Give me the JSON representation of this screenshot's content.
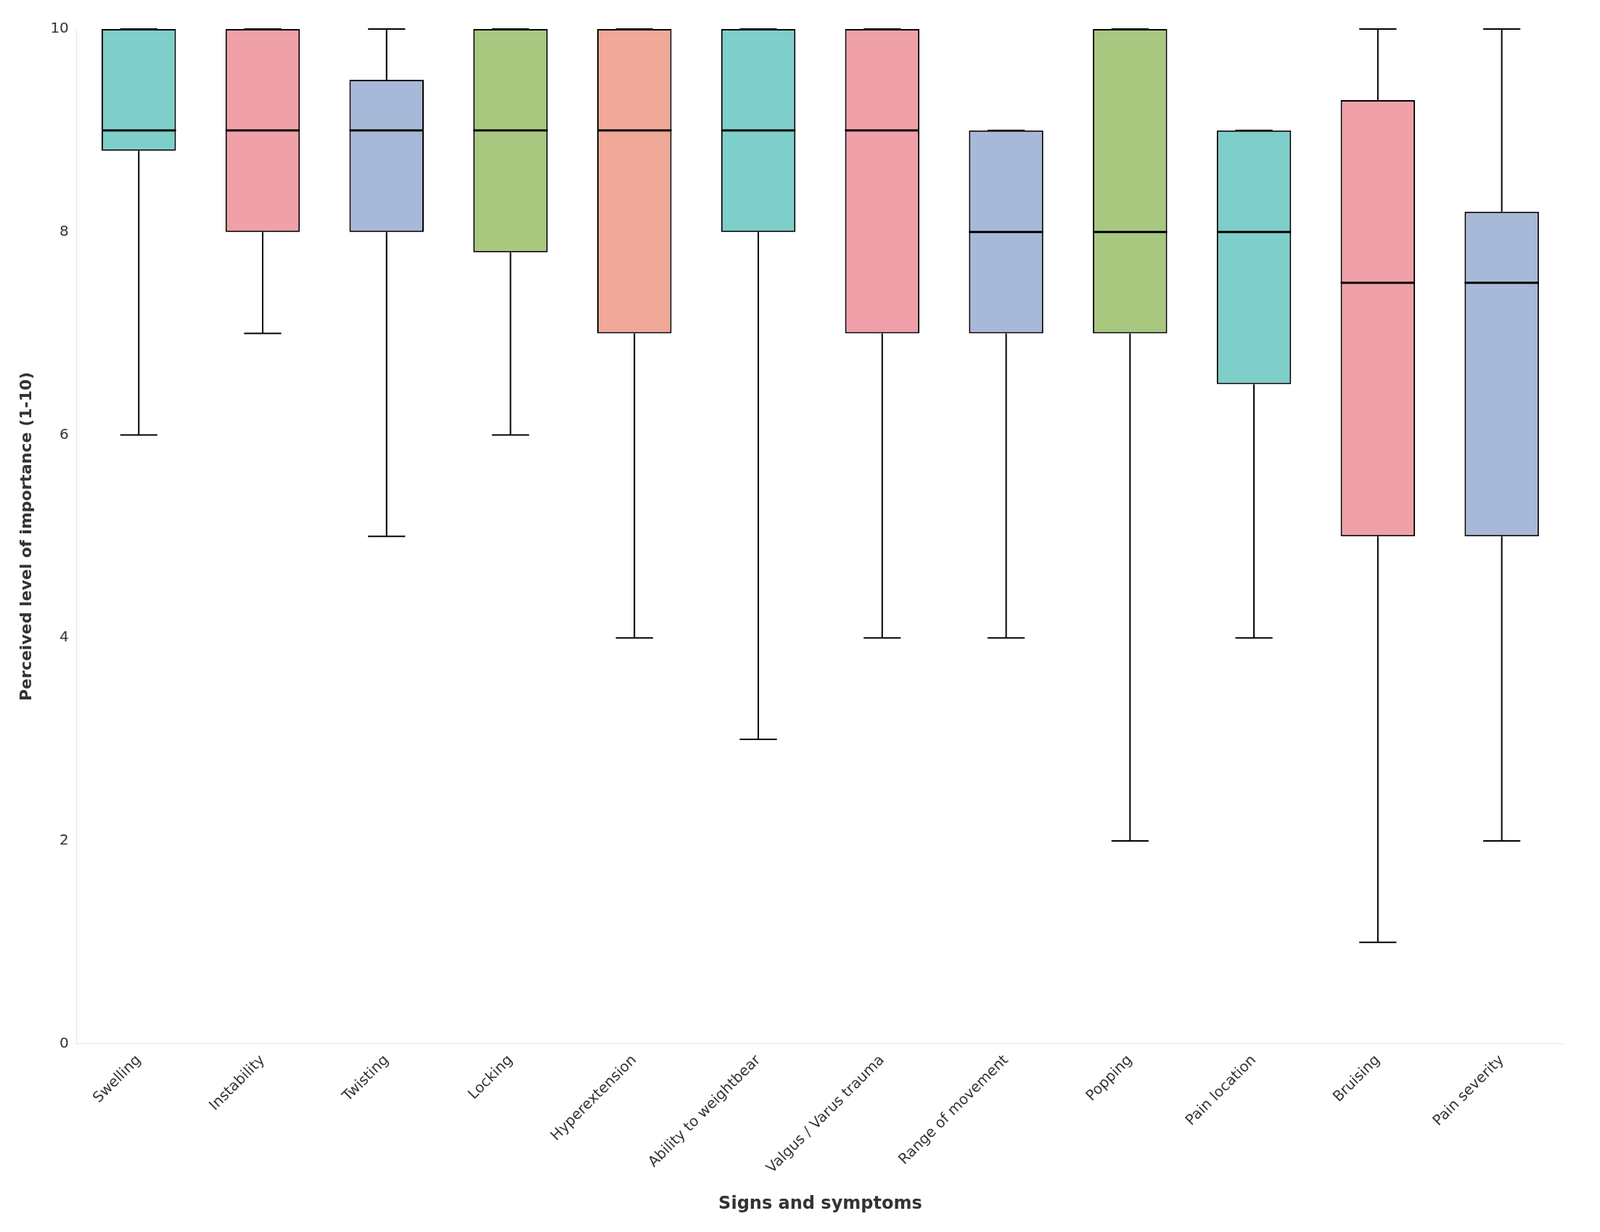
{
  "chart_data": {
    "type": "box",
    "categories": [
      "Swelling",
      "Instability",
      "Twisting",
      "Locking",
      "Hyperextension",
      "Ability to weightbear",
      "Valgus / Varus trauma",
      "Range of movement",
      "Popping",
      "Pain location",
      "Bruising",
      "Pain severity"
    ],
    "boxes": [
      {
        "whislo": 6.0,
        "q1": 8.8,
        "med": 9.0,
        "q3": 10.0,
        "whishi": 10.0
      },
      {
        "whislo": 7.0,
        "q1": 8.0,
        "med": 9.0,
        "q3": 10.0,
        "whishi": 10.0
      },
      {
        "whislo": 5.0,
        "q1": 8.0,
        "med": 9.0,
        "q3": 9.5,
        "whishi": 10.0
      },
      {
        "whislo": 6.0,
        "q1": 7.8,
        "med": 9.0,
        "q3": 10.0,
        "whishi": 10.0
      },
      {
        "whislo": 4.0,
        "q1": 7.0,
        "med": 9.0,
        "q3": 10.0,
        "whishi": 10.0
      },
      {
        "whislo": 3.0,
        "q1": 8.0,
        "med": 9.0,
        "q3": 10.0,
        "whishi": 10.0
      },
      {
        "whislo": 4.0,
        "q1": 7.0,
        "med": 9.0,
        "q3": 10.0,
        "whishi": 10.0
      },
      {
        "whislo": 4.0,
        "q1": 7.0,
        "med": 8.0,
        "q3": 9.0,
        "whishi": 9.0
      },
      {
        "whislo": 2.0,
        "q1": 7.0,
        "med": 8.0,
        "q3": 10.0,
        "whishi": 10.0
      },
      {
        "whislo": 4.0,
        "q1": 6.5,
        "med": 8.0,
        "q3": 9.0,
        "whishi": 9.0
      },
      {
        "whislo": 1.0,
        "q1": 5.0,
        "med": 7.5,
        "q3": 9.3,
        "whishi": 10.0
      },
      {
        "whislo": 2.0,
        "q1": 5.0,
        "med": 7.5,
        "q3": 8.2,
        "whishi": 10.0
      }
    ],
    "colors": [
      "#7ECECA",
      "#F0A0A8",
      "#A8B8D8",
      "#A8C880",
      "#F0A898",
      "#7ECECA",
      "#F0A0A8",
      "#A8B8D8",
      "#A8C880",
      "#7ECECA",
      "#F0A0A8",
      "#A8B8D8"
    ],
    "xlabel": "Signs and symptoms",
    "ylabel": "Perceived level of importance (1-10)",
    "ylim": [
      0,
      10
    ],
    "yticks": [
      0,
      2,
      4,
      6,
      8,
      10
    ],
    "grid": false
  }
}
